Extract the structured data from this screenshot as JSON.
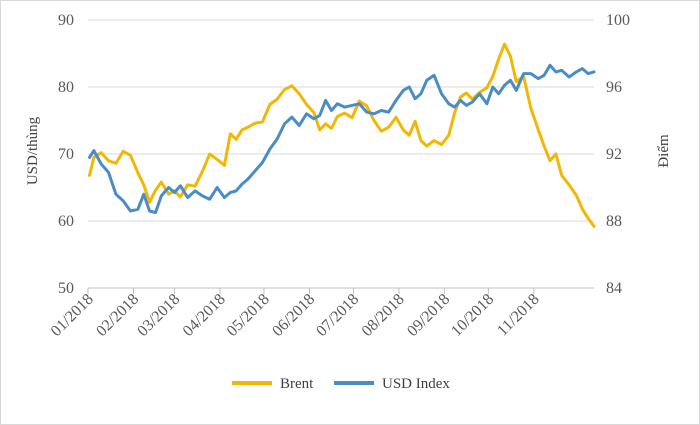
{
  "chart_data": {
    "type": "line",
    "ylabel_left": "USD/thùng",
    "ylabel_right": "Điểm",
    "ylim_left": [
      50,
      90
    ],
    "ylim_right": [
      84,
      100
    ],
    "yticks_left": [
      "50",
      "60",
      "70",
      "80",
      "90"
    ],
    "yticks_right": [
      "84",
      "88",
      "92",
      "96",
      "100"
    ],
    "x_ticks": [
      "01/2018",
      "02/2018",
      "03/2018",
      "04/2018",
      "05/2018",
      "06/2018",
      "07/2018",
      "08/2018",
      "09/2018",
      "10/2018",
      "11/2018"
    ],
    "gridlines": "horizontal",
    "legend_position": "bottom",
    "colors": {
      "brent": "#f2b705",
      "usd": "#4a8cc7",
      "grid": "#d9d9d9",
      "axis": "#bfbfbf"
    },
    "series": [
      {
        "name": "Brent",
        "axis": "left",
        "color": "#f2b705",
        "x": [
          "2018-01-02",
          "2018-01-05",
          "2018-01-10",
          "2018-01-15",
          "2018-01-20",
          "2018-01-25",
          "2018-01-30",
          "2018-02-04",
          "2018-02-08",
          "2018-02-12",
          "2018-02-16",
          "2018-02-20",
          "2018-02-25",
          "2018-03-01",
          "2018-03-05",
          "2018-03-10",
          "2018-03-15",
          "2018-03-20",
          "2018-03-25",
          "2018-03-30",
          "2018-04-04",
          "2018-04-08",
          "2018-04-12",
          "2018-04-16",
          "2018-04-20",
          "2018-04-25",
          "2018-04-30",
          "2018-05-05",
          "2018-05-10",
          "2018-05-15",
          "2018-05-20",
          "2018-05-25",
          "2018-05-30",
          "2018-06-04",
          "2018-06-08",
          "2018-06-12",
          "2018-06-16",
          "2018-06-20",
          "2018-06-25",
          "2018-06-30",
          "2018-07-05",
          "2018-07-10",
          "2018-07-15",
          "2018-07-20",
          "2018-07-25",
          "2018-07-30",
          "2018-08-04",
          "2018-08-08",
          "2018-08-12",
          "2018-08-16",
          "2018-08-20",
          "2018-08-25",
          "2018-08-30",
          "2018-09-04",
          "2018-09-08",
          "2018-09-12",
          "2018-09-16",
          "2018-09-20",
          "2018-09-25",
          "2018-09-30",
          "2018-10-04",
          "2018-10-08",
          "2018-10-12",
          "2018-10-16",
          "2018-10-20",
          "2018-10-25",
          "2018-10-30",
          "2018-11-04",
          "2018-11-08",
          "2018-11-12",
          "2018-11-16",
          "2018-11-20",
          "2018-11-25",
          "2018-11-30",
          "2018-12-04",
          "2018-12-08",
          "2018-12-12"
        ],
        "values": [
          66.8,
          69.5,
          70.2,
          69.0,
          68.6,
          70.4,
          69.8,
          67.2,
          65.4,
          62.8,
          64.6,
          65.8,
          64.0,
          64.5,
          63.6,
          65.4,
          65.2,
          67.4,
          70.0,
          69.2,
          68.3,
          73.0,
          72.2,
          73.6,
          74.0,
          74.6,
          74.8,
          77.4,
          78.2,
          79.6,
          80.2,
          79.0,
          77.4,
          76.2,
          73.6,
          74.5,
          73.8,
          75.6,
          76.1,
          75.4,
          77.9,
          77.2,
          75.0,
          73.4,
          74.0,
          75.5,
          73.6,
          72.8,
          74.9,
          72.0,
          71.2,
          72.0,
          71.4,
          72.8,
          76.2,
          78.5,
          79.1,
          78.2,
          79.2,
          79.9,
          81.6,
          84.2,
          86.4,
          84.6,
          80.8,
          81.6,
          76.8,
          73.6,
          71.2,
          69.0,
          70.0,
          66.8,
          65.4,
          63.8,
          61.8,
          60.4,
          59.2
        ]
      },
      {
        "name": "USD Index",
        "axis": "right",
        "color": "#4a8cc7",
        "x": [
          "2018-01-02",
          "2018-01-05",
          "2018-01-10",
          "2018-01-15",
          "2018-01-20",
          "2018-01-25",
          "2018-01-30",
          "2018-02-04",
          "2018-02-08",
          "2018-02-12",
          "2018-02-16",
          "2018-02-20",
          "2018-02-25",
          "2018-03-01",
          "2018-03-05",
          "2018-03-10",
          "2018-03-15",
          "2018-03-20",
          "2018-03-25",
          "2018-03-30",
          "2018-04-04",
          "2018-04-08",
          "2018-04-12",
          "2018-04-16",
          "2018-04-20",
          "2018-04-25",
          "2018-04-30",
          "2018-05-05",
          "2018-05-10",
          "2018-05-15",
          "2018-05-20",
          "2018-05-25",
          "2018-05-30",
          "2018-06-04",
          "2018-06-08",
          "2018-06-12",
          "2018-06-16",
          "2018-06-20",
          "2018-06-25",
          "2018-06-30",
          "2018-07-05",
          "2018-07-10",
          "2018-07-15",
          "2018-07-20",
          "2018-07-25",
          "2018-07-30",
          "2018-08-04",
          "2018-08-08",
          "2018-08-12",
          "2018-08-16",
          "2018-08-20",
          "2018-08-25",
          "2018-08-30",
          "2018-09-04",
          "2018-09-08",
          "2018-09-12",
          "2018-09-16",
          "2018-09-20",
          "2018-09-25",
          "2018-09-30",
          "2018-10-04",
          "2018-10-08",
          "2018-10-12",
          "2018-10-16",
          "2018-10-20",
          "2018-10-25",
          "2018-10-30",
          "2018-11-04",
          "2018-11-08",
          "2018-11-12",
          "2018-11-16",
          "2018-11-20",
          "2018-11-25",
          "2018-11-30",
          "2018-12-04",
          "2018-12-08",
          "2018-12-12"
        ],
        "values": [
          91.8,
          92.2,
          91.4,
          90.9,
          89.6,
          89.2,
          88.6,
          88.7,
          89.6,
          88.6,
          88.5,
          89.5,
          90.0,
          89.7,
          90.1,
          89.4,
          89.8,
          89.5,
          89.3,
          90.0,
          89.4,
          89.7,
          89.8,
          90.2,
          90.5,
          91.0,
          91.5,
          92.3,
          92.9,
          93.8,
          94.2,
          93.7,
          94.4,
          94.1,
          94.3,
          95.2,
          94.6,
          95.0,
          94.8,
          94.9,
          95.0,
          94.5,
          94.4,
          94.6,
          94.5,
          95.2,
          95.8,
          96.0,
          95.3,
          95.6,
          96.4,
          96.7,
          95.6,
          95.0,
          94.8,
          95.2,
          94.9,
          95.1,
          95.6,
          95.0,
          96.0,
          95.6,
          96.1,
          96.4,
          95.8,
          96.8,
          96.8,
          96.5,
          96.7,
          97.3,
          96.9,
          97.0,
          96.6,
          96.9,
          97.1,
          96.8,
          96.9
        ]
      }
    ]
  }
}
